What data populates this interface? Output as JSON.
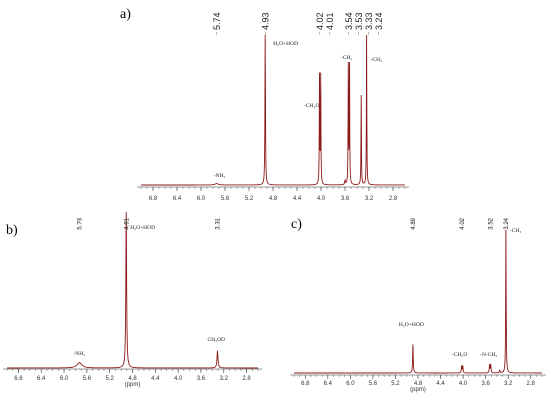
{
  "chart_data": [
    {
      "type": "line",
      "panel_label": "a)",
      "xlabel": "",
      "xlim": [
        7.0,
        2.6
      ],
      "x_ticks": [
        "6.8",
        "6.4",
        "6.0",
        "5.6",
        "5.2",
        "4.8",
        "4.4",
        "4.0",
        "3.6",
        "3.2",
        "2.8"
      ],
      "peak_labels": [
        "5.74",
        "4.93",
        "4.02",
        "4.01",
        "3.54",
        "3.53",
        "3.33",
        "3.24"
      ],
      "annotations": [
        {
          "text": "H₂O+HOD",
          "x": 4.93
        },
        {
          "text": "-CH₂O",
          "x": 4.015
        },
        {
          "text": "-CH₂",
          "x": 3.535
        },
        {
          "text": "-CH₃",
          "x": 3.24
        },
        {
          "text": "-NH₂",
          "x": 5.74
        }
      ],
      "peaks": [
        {
          "x": 5.74,
          "h": 0.01,
          "w": 0.03
        },
        {
          "x": 4.93,
          "h": 1.0,
          "w": 0.005
        },
        {
          "x": 4.025,
          "h": 0.75,
          "w": 0.004
        },
        {
          "x": 4.005,
          "h": 0.75,
          "w": 0.004
        },
        {
          "x": 3.545,
          "h": 0.82,
          "w": 0.004
        },
        {
          "x": 3.525,
          "h": 0.82,
          "w": 0.004
        },
        {
          "x": 3.33,
          "h": 0.6,
          "w": 0.004
        },
        {
          "x": 3.24,
          "h": 1.0,
          "w": 0.004
        },
        {
          "x": 3.6,
          "h": 0.03,
          "w": 0.006
        }
      ]
    },
    {
      "type": "line",
      "panel_label": "b)",
      "xlabel": "(ppm)",
      "xlim": [
        7.0,
        2.6
      ],
      "x_ticks": [
        "6.8",
        "6.4",
        "6.0",
        "5.6",
        "5.2",
        "4.8",
        "4.4",
        "4.0",
        "3.6",
        "3.2",
        "2.8"
      ],
      "peak_labels": [
        "5.73",
        "4.91",
        "3.31"
      ],
      "annotations": [
        {
          "text": "H₂O+HOD",
          "x": 4.91
        },
        {
          "text": "-NH₂",
          "x": 5.73
        },
        {
          "text": "CH₃OD",
          "x": 3.31
        }
      ],
      "peaks": [
        {
          "x": 5.73,
          "h": 0.035,
          "w": 0.05
        },
        {
          "x": 4.91,
          "h": 1.0,
          "w": 0.008
        },
        {
          "x": 3.31,
          "h": 0.11,
          "w": 0.01
        }
      ]
    },
    {
      "type": "line",
      "panel_label": "c)",
      "xlabel": "(ppm)",
      "xlim": [
        7.0,
        2.6
      ],
      "x_ticks": [
        "6.8",
        "6.4",
        "6.0",
        "5.6",
        "5.2",
        "4.8",
        "4.4",
        "4.0",
        "3.6",
        "3.2",
        "2.8"
      ],
      "peak_labels": [
        "4.89",
        "4.02",
        "3.52",
        "3.24"
      ],
      "annotations": [
        {
          "text": "H₂O+HOD",
          "x": 4.89
        },
        {
          "text": "-CH₂O",
          "x": 4.02
        },
        {
          "text": "-N-CH₂",
          "x": 3.52
        },
        {
          "text": "-CH₃",
          "x": 3.24
        }
      ],
      "peaks": [
        {
          "x": 4.89,
          "h": 0.2,
          "w": 0.006
        },
        {
          "x": 4.025,
          "h": 0.05,
          "w": 0.006
        },
        {
          "x": 4.005,
          "h": 0.05,
          "w": 0.006
        },
        {
          "x": 3.53,
          "h": 0.06,
          "w": 0.006
        },
        {
          "x": 3.51,
          "h": 0.06,
          "w": 0.006
        },
        {
          "x": 3.35,
          "h": 0.02,
          "w": 0.006
        },
        {
          "x": 3.24,
          "h": 1.0,
          "w": 0.005
        }
      ]
    }
  ]
}
